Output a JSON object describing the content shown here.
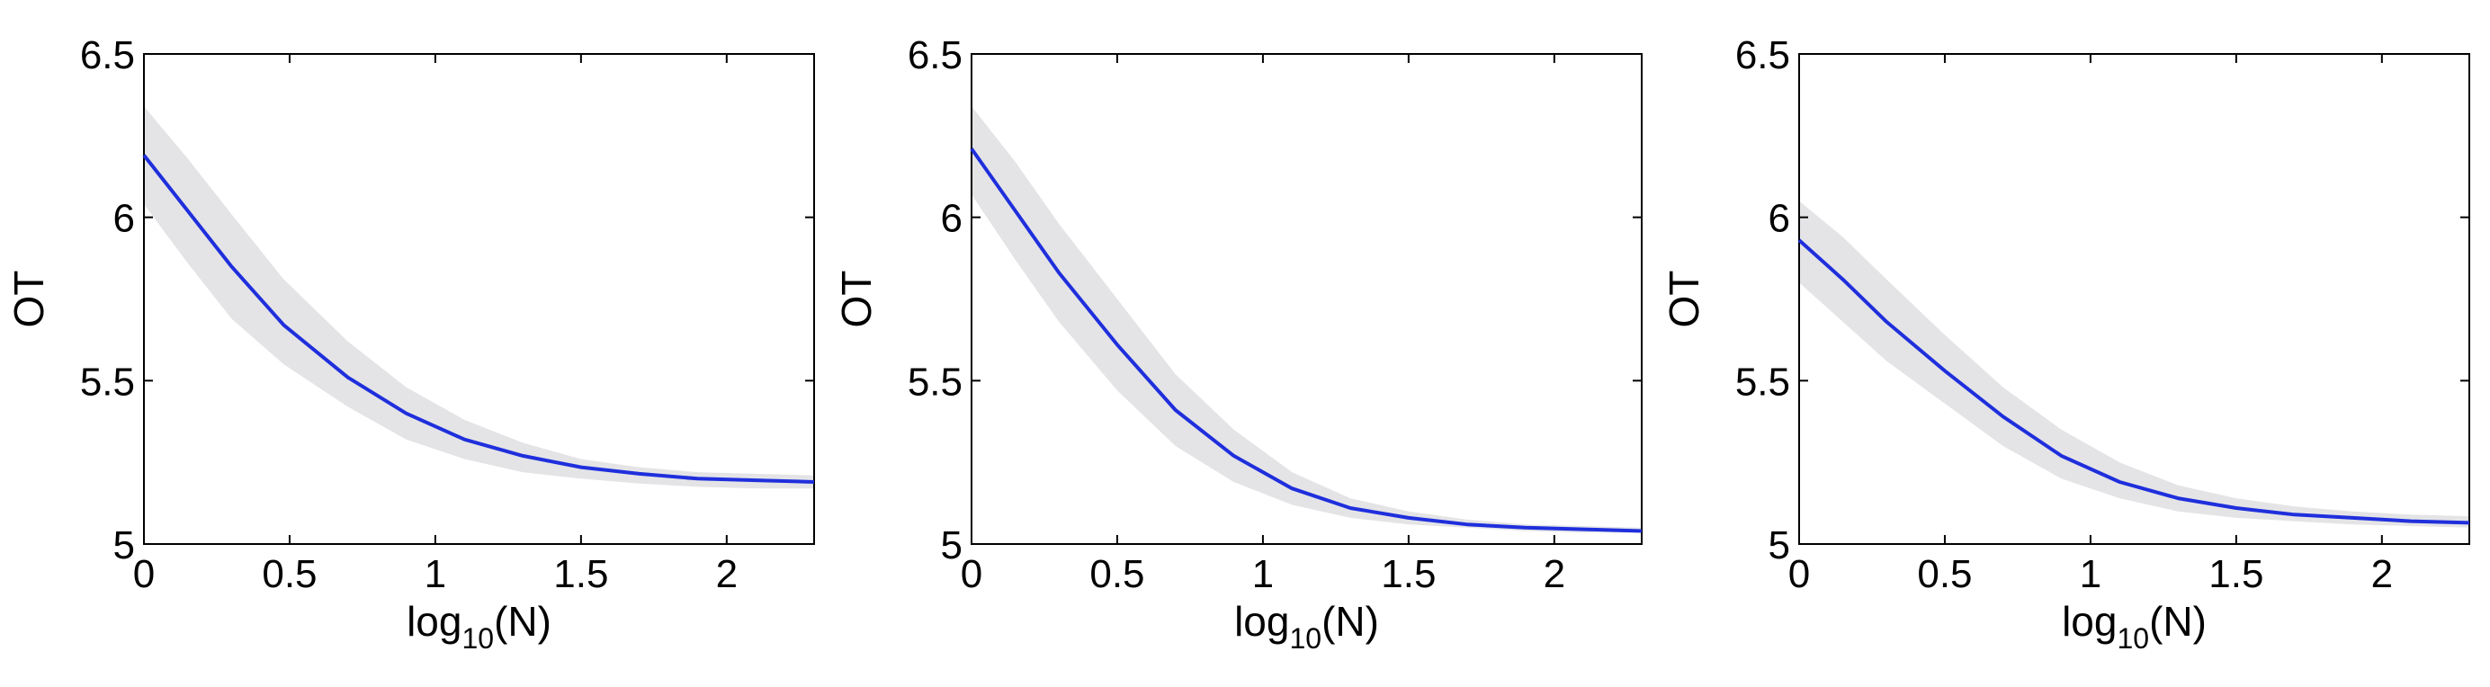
{
  "chart_data": [
    {
      "type": "line",
      "title": "",
      "xlabel": {
        "prefix": "log",
        "subscript": "10",
        "suffix": "(N)"
      },
      "ylabel": "OT",
      "xlim": [
        0,
        2.3
      ],
      "ylim": [
        5,
        6.5
      ],
      "xticks": [
        "0",
        "0.5",
        "1",
        "1.5",
        "2"
      ],
      "yticks": [
        "5",
        "5.5",
        "6",
        "6.5"
      ],
      "grid": false,
      "line_color": "#1f2fdc",
      "band_color": "#e4e4e6",
      "series": [
        {
          "x": [
            0,
            0.15,
            0.3,
            0.48,
            0.7,
            0.9,
            1.1,
            1.3,
            1.5,
            1.7,
            1.9,
            2.1,
            2.3
          ],
          "y": [
            6.19,
            6.02,
            5.85,
            5.67,
            5.51,
            5.4,
            5.32,
            5.27,
            5.235,
            5.215,
            5.2,
            5.195,
            5.19
          ],
          "lower": [
            6.04,
            5.86,
            5.69,
            5.55,
            5.42,
            5.32,
            5.26,
            5.22,
            5.2,
            5.185,
            5.175,
            5.17,
            5.17
          ],
          "upper": [
            6.34,
            6.18,
            6.01,
            5.81,
            5.62,
            5.48,
            5.38,
            5.31,
            5.26,
            5.235,
            5.22,
            5.215,
            5.21
          ]
        }
      ]
    },
    {
      "type": "line",
      "title": "",
      "xlabel": {
        "prefix": "log",
        "subscript": "10",
        "suffix": "(N)"
      },
      "ylabel": "OT",
      "xlim": [
        0,
        2.3
      ],
      "ylim": [
        5,
        6.5
      ],
      "xticks": [
        "0",
        "0.5",
        "1",
        "1.5",
        "2"
      ],
      "yticks": [
        "5",
        "5.5",
        "6",
        "6.5"
      ],
      "grid": false,
      "line_color": "#1f2fdc",
      "band_color": "#e4e4e6",
      "series": [
        {
          "x": [
            0,
            0.15,
            0.3,
            0.5,
            0.7,
            0.9,
            1.1,
            1.3,
            1.5,
            1.7,
            1.9,
            2.1,
            2.3
          ],
          "y": [
            6.21,
            6.02,
            5.83,
            5.61,
            5.41,
            5.27,
            5.17,
            5.11,
            5.08,
            5.06,
            5.05,
            5.045,
            5.04
          ],
          "lower": [
            6.07,
            5.87,
            5.68,
            5.47,
            5.3,
            5.19,
            5.12,
            5.08,
            5.06,
            5.05,
            5.04,
            5.035,
            5.035
          ],
          "upper": [
            6.34,
            6.17,
            5.98,
            5.75,
            5.52,
            5.35,
            5.22,
            5.14,
            5.1,
            5.075,
            5.06,
            5.055,
            5.05
          ]
        }
      ]
    },
    {
      "type": "line",
      "title": "",
      "xlabel": {
        "prefix": "log",
        "subscript": "10",
        "suffix": "(N)"
      },
      "ylabel": "OT",
      "xlim": [
        0,
        2.3
      ],
      "ylim": [
        5,
        6.5
      ],
      "xticks": [
        "0",
        "0.5",
        "1",
        "1.5",
        "2"
      ],
      "yticks": [
        "5",
        "5.5",
        "6",
        "6.5"
      ],
      "grid": false,
      "line_color": "#1f2fdc",
      "band_color": "#e4e4e6",
      "series": [
        {
          "x": [
            0,
            0.15,
            0.3,
            0.5,
            0.7,
            0.9,
            1.1,
            1.3,
            1.5,
            1.7,
            1.9,
            2.1,
            2.3
          ],
          "y": [
            5.93,
            5.81,
            5.68,
            5.53,
            5.39,
            5.27,
            5.19,
            5.14,
            5.11,
            5.09,
            5.08,
            5.07,
            5.065
          ],
          "lower": [
            5.8,
            5.68,
            5.56,
            5.43,
            5.3,
            5.2,
            5.14,
            5.1,
            5.08,
            5.07,
            5.06,
            5.055,
            5.05
          ],
          "upper": [
            6.05,
            5.94,
            5.81,
            5.64,
            5.48,
            5.35,
            5.25,
            5.18,
            5.14,
            5.115,
            5.1,
            5.09,
            5.085
          ]
        }
      ]
    }
  ]
}
